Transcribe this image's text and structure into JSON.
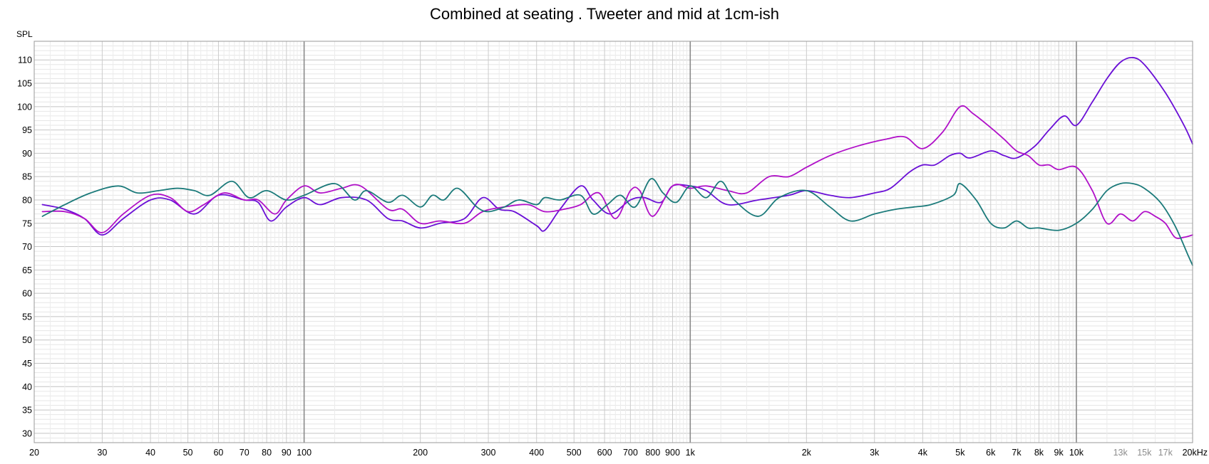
{
  "chart_data": {
    "type": "line",
    "title": "Combined at seating . Tweeter and mid at 1cm-ish",
    "ylabel": "SPL",
    "xscale": "log",
    "xlim": [
      20,
      20000
    ],
    "ylim": [
      28,
      114
    ],
    "yticks": [
      30,
      35,
      40,
      45,
      50,
      55,
      60,
      65,
      70,
      75,
      80,
      85,
      90,
      95,
      100,
      105,
      110
    ],
    "xticks": [
      {
        "value": 20,
        "label": "20",
        "style": "normal"
      },
      {
        "value": 30,
        "label": "30",
        "style": "normal"
      },
      {
        "value": 40,
        "label": "40",
        "style": "normal"
      },
      {
        "value": 50,
        "label": "50",
        "style": "normal"
      },
      {
        "value": 60,
        "label": "60",
        "style": "normal"
      },
      {
        "value": 70,
        "label": "70",
        "style": "normal"
      },
      {
        "value": 80,
        "label": "80",
        "style": "normal"
      },
      {
        "value": 90,
        "label": "90",
        "style": "normal"
      },
      {
        "value": 100,
        "label": "100",
        "style": "normal"
      },
      {
        "value": 200,
        "label": "200",
        "style": "normal"
      },
      {
        "value": 300,
        "label": "300",
        "style": "normal"
      },
      {
        "value": 400,
        "label": "400",
        "style": "normal"
      },
      {
        "value": 500,
        "label": "500",
        "style": "normal"
      },
      {
        "value": 600,
        "label": "600",
        "style": "normal"
      },
      {
        "value": 700,
        "label": "700",
        "style": "normal"
      },
      {
        "value": 800,
        "label": "800",
        "style": "normal"
      },
      {
        "value": 900,
        "label": "900",
        "style": "normal"
      },
      {
        "value": 1000,
        "label": "1k",
        "style": "normal"
      },
      {
        "value": 2000,
        "label": "2k",
        "style": "normal"
      },
      {
        "value": 3000,
        "label": "3k",
        "style": "normal"
      },
      {
        "value": 4000,
        "label": "4k",
        "style": "normal"
      },
      {
        "value": 5000,
        "label": "5k",
        "style": "normal"
      },
      {
        "value": 6000,
        "label": "6k",
        "style": "normal"
      },
      {
        "value": 7000,
        "label": "7k",
        "style": "normal"
      },
      {
        "value": 8000,
        "label": "8k",
        "style": "normal"
      },
      {
        "value": 9000,
        "label": "9k",
        "style": "normal"
      },
      {
        "value": 10000,
        "label": "10k",
        "style": "normal"
      },
      {
        "value": 13000,
        "label": "13k",
        "style": "minor"
      },
      {
        "value": 15000,
        "label": "15k",
        "style": "minor"
      },
      {
        "value": 17000,
        "label": "17k",
        "style": "minor"
      },
      {
        "value": 20000,
        "label": "20kHz",
        "style": "normal"
      }
    ],
    "grid": true,
    "series": [
      {
        "color": "#6a0fd6",
        "points": [
          [
            21,
            79
          ],
          [
            24,
            78
          ],
          [
            27,
            76
          ],
          [
            30,
            72.5
          ],
          [
            34,
            76
          ],
          [
            40,
            80
          ],
          [
            45,
            80
          ],
          [
            52,
            77
          ],
          [
            60,
            81
          ],
          [
            70,
            80
          ],
          [
            76,
            79.5
          ],
          [
            82,
            75.5
          ],
          [
            90,
            78.5
          ],
          [
            100,
            80.5
          ],
          [
            110,
            79
          ],
          [
            125,
            80.5
          ],
          [
            145,
            80
          ],
          [
            165,
            76
          ],
          [
            180,
            75.5
          ],
          [
            200,
            74
          ],
          [
            225,
            75
          ],
          [
            260,
            76
          ],
          [
            290,
            80.5
          ],
          [
            320,
            78
          ],
          [
            350,
            77.5
          ],
          [
            400,
            74.5
          ],
          [
            420,
            73.5
          ],
          [
            460,
            78
          ],
          [
            520,
            83
          ],
          [
            560,
            80
          ],
          [
            620,
            77
          ],
          [
            700,
            80
          ],
          [
            760,
            80.5
          ],
          [
            840,
            79.5
          ],
          [
            900,
            83
          ],
          [
            1000,
            83
          ],
          [
            1100,
            82
          ],
          [
            1250,
            79
          ],
          [
            1500,
            80
          ],
          [
            1800,
            81
          ],
          [
            2000,
            82
          ],
          [
            2300,
            81
          ],
          [
            2600,
            80.5
          ],
          [
            3000,
            81.5
          ],
          [
            3300,
            82.5
          ],
          [
            3700,
            86
          ],
          [
            4000,
            87.5
          ],
          [
            4300,
            87.5
          ],
          [
            4700,
            89.5
          ],
          [
            5000,
            90
          ],
          [
            5300,
            89
          ],
          [
            6000,
            90.5
          ],
          [
            6500,
            89.5
          ],
          [
            7000,
            89
          ],
          [
            7800,
            91.5
          ],
          [
            8500,
            95
          ],
          [
            9300,
            98
          ],
          [
            10000,
            96
          ],
          [
            11000,
            101
          ],
          [
            12000,
            106
          ],
          [
            13000,
            109.5
          ],
          [
            14000,
            110.5
          ],
          [
            15000,
            109
          ],
          [
            17000,
            103
          ],
          [
            19000,
            96
          ],
          [
            20000,
            92
          ]
        ]
      },
      {
        "color": "#b010c8",
        "points": [
          [
            21,
            77.5
          ],
          [
            24,
            77.5
          ],
          [
            27,
            76
          ],
          [
            30,
            73
          ],
          [
            34,
            77
          ],
          [
            40,
            81
          ],
          [
            45,
            80.5
          ],
          [
            50,
            77.5
          ],
          [
            55,
            79
          ],
          [
            62,
            81.5
          ],
          [
            70,
            80
          ],
          [
            76,
            80
          ],
          [
            84,
            77
          ],
          [
            90,
            80
          ],
          [
            100,
            83
          ],
          [
            110,
            81.5
          ],
          [
            125,
            82.5
          ],
          [
            140,
            83
          ],
          [
            165,
            78
          ],
          [
            180,
            78
          ],
          [
            200,
            75
          ],
          [
            225,
            75.5
          ],
          [
            260,
            75
          ],
          [
            290,
            77.5
          ],
          [
            330,
            78.5
          ],
          [
            380,
            79
          ],
          [
            420,
            77.5
          ],
          [
            470,
            78
          ],
          [
            520,
            79
          ],
          [
            580,
            81.5
          ],
          [
            640,
            76
          ],
          [
            700,
            82
          ],
          [
            740,
            82
          ],
          [
            800,
            76.5
          ],
          [
            900,
            83
          ],
          [
            1000,
            82.5
          ],
          [
            1100,
            83
          ],
          [
            1250,
            82
          ],
          [
            1400,
            81.5
          ],
          [
            1600,
            85
          ],
          [
            1800,
            85
          ],
          [
            2000,
            87
          ],
          [
            2300,
            89.5
          ],
          [
            2700,
            91.5
          ],
          [
            3200,
            93
          ],
          [
            3600,
            93.5
          ],
          [
            4000,
            91
          ],
          [
            4500,
            94.5
          ],
          [
            5000,
            100
          ],
          [
            5400,
            98.5
          ],
          [
            6000,
            95.5
          ],
          [
            6500,
            93
          ],
          [
            7000,
            90.5
          ],
          [
            7500,
            89.5
          ],
          [
            8000,
            87.5
          ],
          [
            8500,
            87.5
          ],
          [
            9000,
            86.5
          ],
          [
            10000,
            87
          ],
          [
            11000,
            82
          ],
          [
            12000,
            75
          ],
          [
            13000,
            77
          ],
          [
            14000,
            75.5
          ],
          [
            15000,
            77.5
          ],
          [
            16000,
            76.5
          ],
          [
            17000,
            75
          ],
          [
            18000,
            72
          ],
          [
            19000,
            72
          ],
          [
            20000,
            72.5
          ]
        ]
      },
      {
        "color": "#1b7a7a",
        "points": [
          [
            21,
            76.5
          ],
          [
            24,
            79
          ],
          [
            28,
            81.5
          ],
          [
            33,
            83
          ],
          [
            37,
            81.5
          ],
          [
            42,
            82
          ],
          [
            47,
            82.5
          ],
          [
            52,
            82
          ],
          [
            57,
            81
          ],
          [
            65,
            84
          ],
          [
            72,
            80.5
          ],
          [
            80,
            82
          ],
          [
            90,
            80
          ],
          [
            100,
            81
          ],
          [
            120,
            83.5
          ],
          [
            135,
            80
          ],
          [
            145,
            82
          ],
          [
            165,
            79.5
          ],
          [
            180,
            81
          ],
          [
            200,
            78.5
          ],
          [
            215,
            81
          ],
          [
            230,
            80
          ],
          [
            250,
            82.5
          ],
          [
            280,
            78.5
          ],
          [
            300,
            77.5
          ],
          [
            330,
            78.5
          ],
          [
            360,
            80
          ],
          [
            400,
            79
          ],
          [
            420,
            80.5
          ],
          [
            460,
            80
          ],
          [
            520,
            81
          ],
          [
            560,
            77
          ],
          [
            610,
            79
          ],
          [
            660,
            81
          ],
          [
            720,
            78.5
          ],
          [
            790,
            84.5
          ],
          [
            850,
            81.5
          ],
          [
            920,
            79.5
          ],
          [
            1000,
            83
          ],
          [
            1100,
            80.5
          ],
          [
            1200,
            84
          ],
          [
            1300,
            80
          ],
          [
            1500,
            76.5
          ],
          [
            1700,
            80.5
          ],
          [
            2000,
            82
          ],
          [
            2300,
            78.5
          ],
          [
            2600,
            75.5
          ],
          [
            3000,
            77
          ],
          [
            3400,
            78
          ],
          [
            3800,
            78.5
          ],
          [
            4200,
            79
          ],
          [
            4800,
            81
          ],
          [
            5000,
            83.5
          ],
          [
            5500,
            80
          ],
          [
            6000,
            75
          ],
          [
            6500,
            74
          ],
          [
            7000,
            75.5
          ],
          [
            7500,
            74
          ],
          [
            8000,
            74
          ],
          [
            9000,
            73.5
          ],
          [
            10000,
            75
          ],
          [
            11000,
            78
          ],
          [
            12000,
            82
          ],
          [
            13000,
            83.5
          ],
          [
            14000,
            83.5
          ],
          [
            15000,
            82.5
          ],
          [
            16500,
            79.5
          ],
          [
            18000,
            74.5
          ],
          [
            19500,
            68
          ],
          [
            20000,
            66
          ]
        ]
      }
    ]
  }
}
